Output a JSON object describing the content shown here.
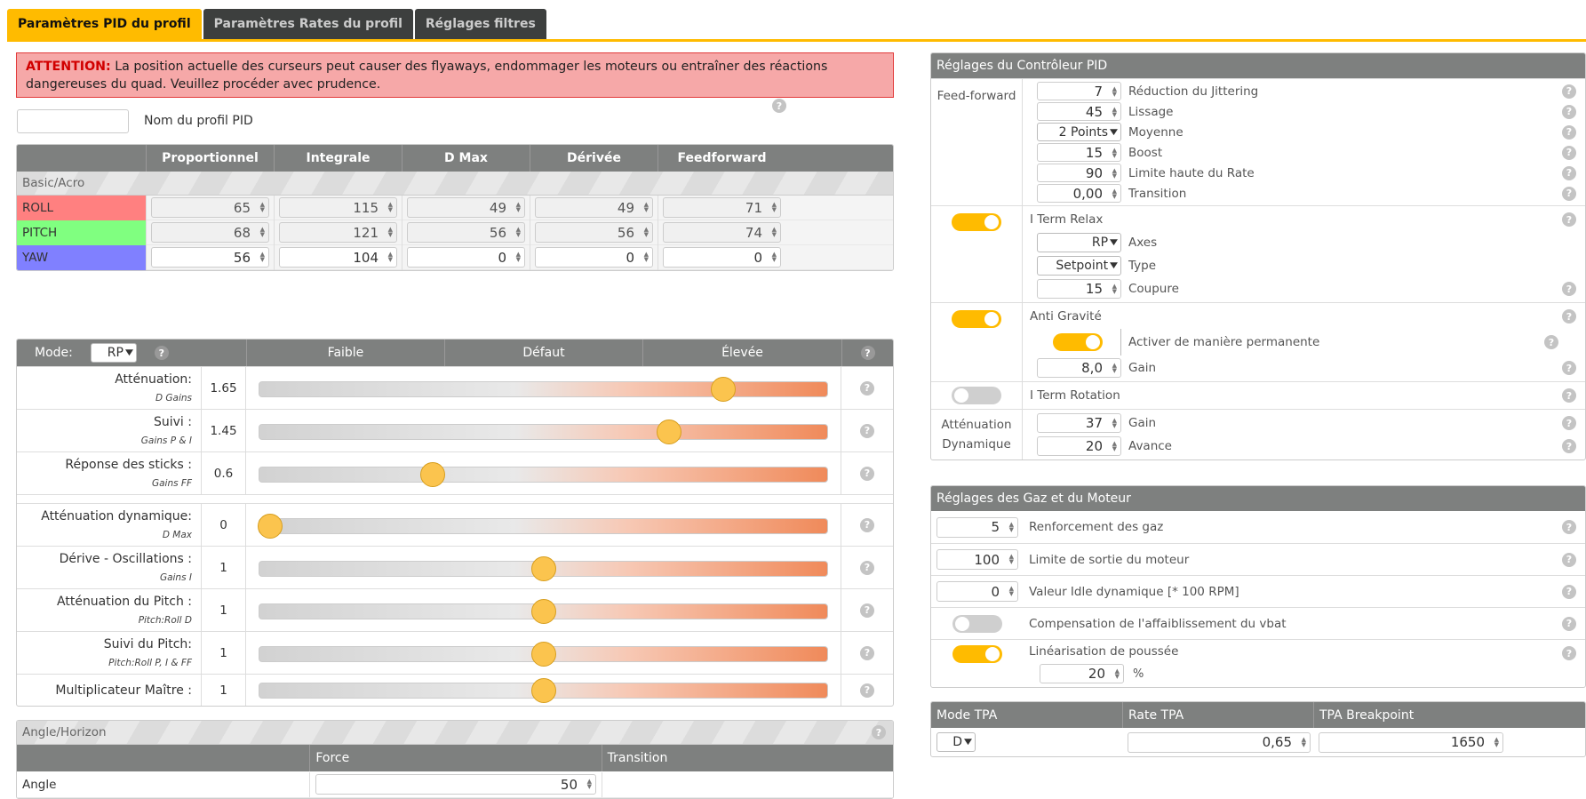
{
  "tabs": [
    {
      "label": "Paramètres PID du profil",
      "active": true
    },
    {
      "label": "Paramètres Rates du profil",
      "active": false
    },
    {
      "label": "Réglages filtres",
      "active": false
    }
  ],
  "warning": {
    "prefix": "ATTENTION:",
    "text": "La position actuelle des curseurs peut causer des flyaways, endommager les moteurs ou entraîner des réactions dangereuses du quad. Veuillez procéder avec prudence."
  },
  "profile": {
    "name_value": "",
    "name_label": "Nom du profil PID"
  },
  "pid": {
    "headers": {
      "p": "Proportionnel",
      "i": "Integrale",
      "dmax": "D Max",
      "d": "Dérivée",
      "ff": "Feedforward"
    },
    "group": "Basic/Acro",
    "rows": [
      {
        "axis": "ROLL",
        "color": "#ff8080",
        "p": "65",
        "i": "115",
        "dmax": "49",
        "d": "49",
        "ff": "71",
        "disabled": true
      },
      {
        "axis": "PITCH",
        "color": "#80ff80",
        "p": "68",
        "i": "121",
        "dmax": "56",
        "d": "56",
        "ff": "74",
        "disabled": true
      },
      {
        "axis": "YAW",
        "color": "#8080ff",
        "p": "56",
        "i": "104",
        "dmax": "0",
        "d": "0",
        "ff": "0",
        "disabled": false
      }
    ]
  },
  "sliders": {
    "mode_label": "Mode:",
    "mode_value": "RP",
    "col_low": "Faible",
    "col_default": "Défaut",
    "col_high": "Élevée",
    "rows": [
      {
        "label": "Atténuation:",
        "sub": "D Gains",
        "value": "1.65",
        "pos": 0.815
      },
      {
        "label": "Suivi :",
        "sub": "Gains P & I",
        "value": "1.45",
        "pos": 0.72
      },
      {
        "label": "Réponse des sticks :",
        "sub": "Gains FF",
        "value": "0.6",
        "pos": 0.305
      }
    ],
    "rows2": [
      {
        "label": "Atténuation dynamique:",
        "sub": "D Max",
        "value": "0",
        "pos": 0.02
      },
      {
        "label": "Dérive - Oscillations :",
        "sub": "Gains I",
        "value": "1",
        "pos": 0.5
      },
      {
        "label": "Atténuation du Pitch :",
        "sub": "Pitch:Roll D",
        "value": "1",
        "pos": 0.5
      },
      {
        "label": "Suivi du Pitch:",
        "sub": "Pitch:Roll P, I & FF",
        "value": "1",
        "pos": 0.5
      },
      {
        "label": "Multiplicateur Maître :",
        "sub": "",
        "value": "1",
        "pos": 0.5
      }
    ]
  },
  "angle": {
    "title": "Angle/Horizon",
    "col_force": "Force",
    "col_transition": "Transition",
    "row_label": "Angle",
    "force": "50"
  },
  "controller": {
    "title": "Réglages du Contrôleur PID",
    "ff_label": "Feed-forward",
    "ff": {
      "jitter": "7",
      "jitter_label": "Réduction du Jittering",
      "smooth": "45",
      "smooth_label": "Lissage",
      "avg": "2 Points",
      "avg_label": "Moyenne",
      "boost": "15",
      "boost_label": "Boost",
      "rate_limit": "90",
      "rate_limit_label": "Limite haute du Rate",
      "transition": "0,00",
      "transition_label": "Transition"
    },
    "iterm_relax": {
      "label": "I Term Relax",
      "axes": "RP",
      "axes_label": "Axes",
      "type": "Setpoint",
      "type_label": "Type",
      "cutoff": "15",
      "cutoff_label": "Coupure"
    },
    "anti_gravity": {
      "label": "Anti Gravité",
      "permanent_label": "Activer de manière permanente",
      "gain": "8,0",
      "gain_label": "Gain"
    },
    "iterm_rotation": {
      "label": "I Term Rotation"
    },
    "dyn_damp": {
      "label": "Atténuation Dynamique",
      "gain": "37",
      "gain_label": "Gain",
      "advance": "20",
      "advance_label": "Avance"
    }
  },
  "throttle": {
    "title": "Réglages des Gaz et du Moteur",
    "boost": "5",
    "boost_label": "Renforcement des gaz",
    "motor_limit": "100",
    "motor_limit_label": "Limite de sortie du moteur",
    "idle": "0",
    "idle_label": "Valeur Idle dynamique [* 100 RPM]",
    "vbat_label": "Compensation de l'affaiblissement du vbat",
    "thrust_label": "Linéarisation de poussée",
    "thrust": "20",
    "thrust_unit": "%"
  },
  "tpa": {
    "mode_label": "Mode TPA",
    "rate_label": "Rate TPA",
    "bp_label": "TPA Breakpoint",
    "mode": "D",
    "rate": "0,65",
    "bp": "1650"
  },
  "help_glyph": "?"
}
